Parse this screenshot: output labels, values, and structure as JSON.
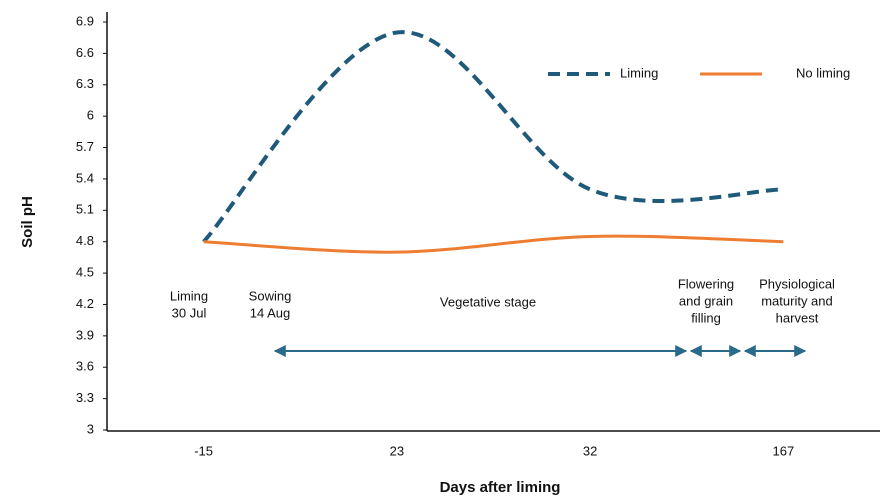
{
  "chart_data": {
    "type": "line",
    "x_label": "Days after liming",
    "y_label": "Soil pH",
    "categories": [
      "-15",
      "23",
      "32",
      "167"
    ],
    "series": [
      {
        "name": "Liming",
        "color": "#1f5a7a",
        "style": "dashed",
        "values": [
          4.8,
          6.8,
          5.3,
          5.3
        ]
      },
      {
        "name": "No liming",
        "color": "#ed7d31",
        "style": "solid",
        "values": [
          4.8,
          4.7,
          4.85,
          4.8
        ]
      }
    ],
    "ylim": [
      3,
      6.9
    ],
    "yticks": [
      3,
      3.3,
      3.6,
      3.9,
      4.2,
      4.5,
      4.8,
      5.1,
      5.4,
      5.7,
      6,
      6.3,
      6.6,
      6.9
    ],
    "grid": false,
    "legend": "top-right",
    "annotations": [
      {
        "lines": [
          "Liming",
          "30 Jul"
        ]
      },
      {
        "lines": [
          "Sowing",
          "14 Aug"
        ]
      },
      {
        "lines": [
          "Vegetative stage"
        ]
      },
      {
        "lines": [
          "Flowering",
          "and grain",
          "filling"
        ]
      },
      {
        "lines": [
          "Physiological",
          "maturity and",
          "harvest"
        ]
      }
    ]
  }
}
